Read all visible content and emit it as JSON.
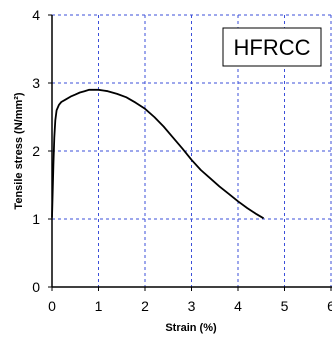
{
  "chart_data": {
    "type": "line",
    "title": "",
    "xlabel": "Strain (%)",
    "ylabel": "Tensile stress (N/mm²)",
    "xlim": [
      0,
      6
    ],
    "ylim": [
      0,
      4
    ],
    "x_ticks": [
      "0",
      "1",
      "2",
      "3",
      "4",
      "5",
      "6"
    ],
    "y_ticks": [
      "0",
      "1",
      "2",
      "3",
      "4"
    ],
    "grid": true,
    "grid_color": "#3b4fd9",
    "line_color": "#000000",
    "legend_box": "HFRCC",
    "legend_placement": "top-right",
    "series": [
      {
        "name": "HFRCC",
        "x": [
          0.0,
          0.03,
          0.05,
          0.07,
          0.1,
          0.15,
          0.2,
          0.3,
          0.4,
          0.5,
          0.6,
          0.7,
          0.8,
          0.9,
          1.0,
          1.1,
          1.2,
          1.4,
          1.6,
          1.8,
          2.0,
          2.2,
          2.4,
          2.6,
          2.8,
          3.0,
          3.2,
          3.4,
          3.6,
          3.8,
          4.0,
          4.2,
          4.4,
          4.55
        ],
        "y": [
          1.02,
          1.8,
          2.2,
          2.45,
          2.6,
          2.68,
          2.72,
          2.76,
          2.8,
          2.83,
          2.86,
          2.88,
          2.9,
          2.9,
          2.9,
          2.89,
          2.88,
          2.84,
          2.79,
          2.71,
          2.62,
          2.5,
          2.36,
          2.2,
          2.04,
          1.87,
          1.72,
          1.6,
          1.48,
          1.37,
          1.26,
          1.16,
          1.07,
          1.01
        ]
      }
    ]
  }
}
